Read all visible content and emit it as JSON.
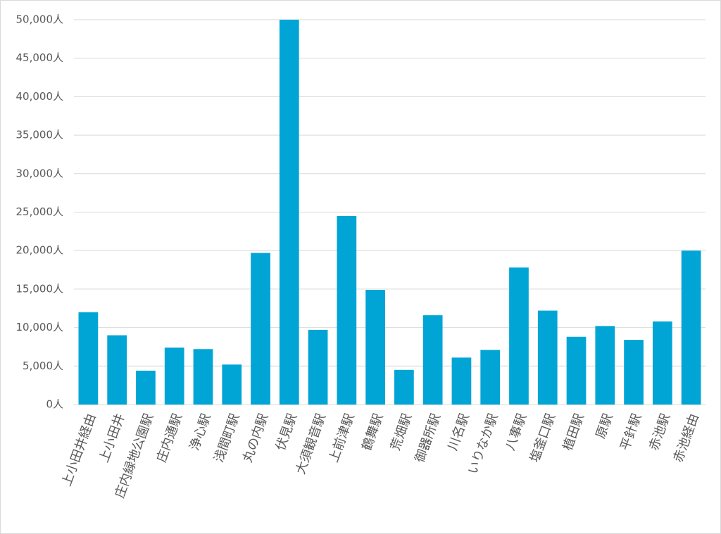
{
  "chart_data": {
    "type": "bar",
    "categories": [
      "上小田井経由",
      "上小田井",
      "庄内緑地公園駅",
      "庄内通駅",
      "浄心駅",
      "浅間町駅",
      "丸の内駅",
      "伏見駅",
      "大須観音駅",
      "上前津駅",
      "鶴舞駅",
      "荒畑駅",
      "御器所駅",
      "川名駅",
      "いりなか駅",
      "八事駅",
      "塩釜口駅",
      "植田駅",
      "原駅",
      "平針駅",
      "赤池駅",
      "赤池経由"
    ],
    "values": [
      12000,
      9000,
      4400,
      7400,
      7200,
      5200,
      19700,
      50000,
      9700,
      24500,
      14900,
      4500,
      11600,
      6100,
      7100,
      17800,
      12200,
      8800,
      10200,
      8400,
      10800,
      20000
    ],
    "color": "#00a5d6",
    "ylim": [
      0,
      50000
    ],
    "yticks": [
      {
        "value": 0,
        "label": "0人"
      },
      {
        "value": 5000,
        "label": "5,000人"
      },
      {
        "value": 10000,
        "label": "10,000人"
      },
      {
        "value": 15000,
        "label": "15,000人"
      },
      {
        "value": 20000,
        "label": "20,000人"
      },
      {
        "value": 25000,
        "label": "25,000人"
      },
      {
        "value": 30000,
        "label": "30,000人"
      },
      {
        "value": 35000,
        "label": "35,000人"
      },
      {
        "value": 40000,
        "label": "40,000人"
      },
      {
        "value": 45000,
        "label": "45,000人"
      },
      {
        "value": 50000,
        "label": "50,000人"
      }
    ],
    "grid": true
  }
}
